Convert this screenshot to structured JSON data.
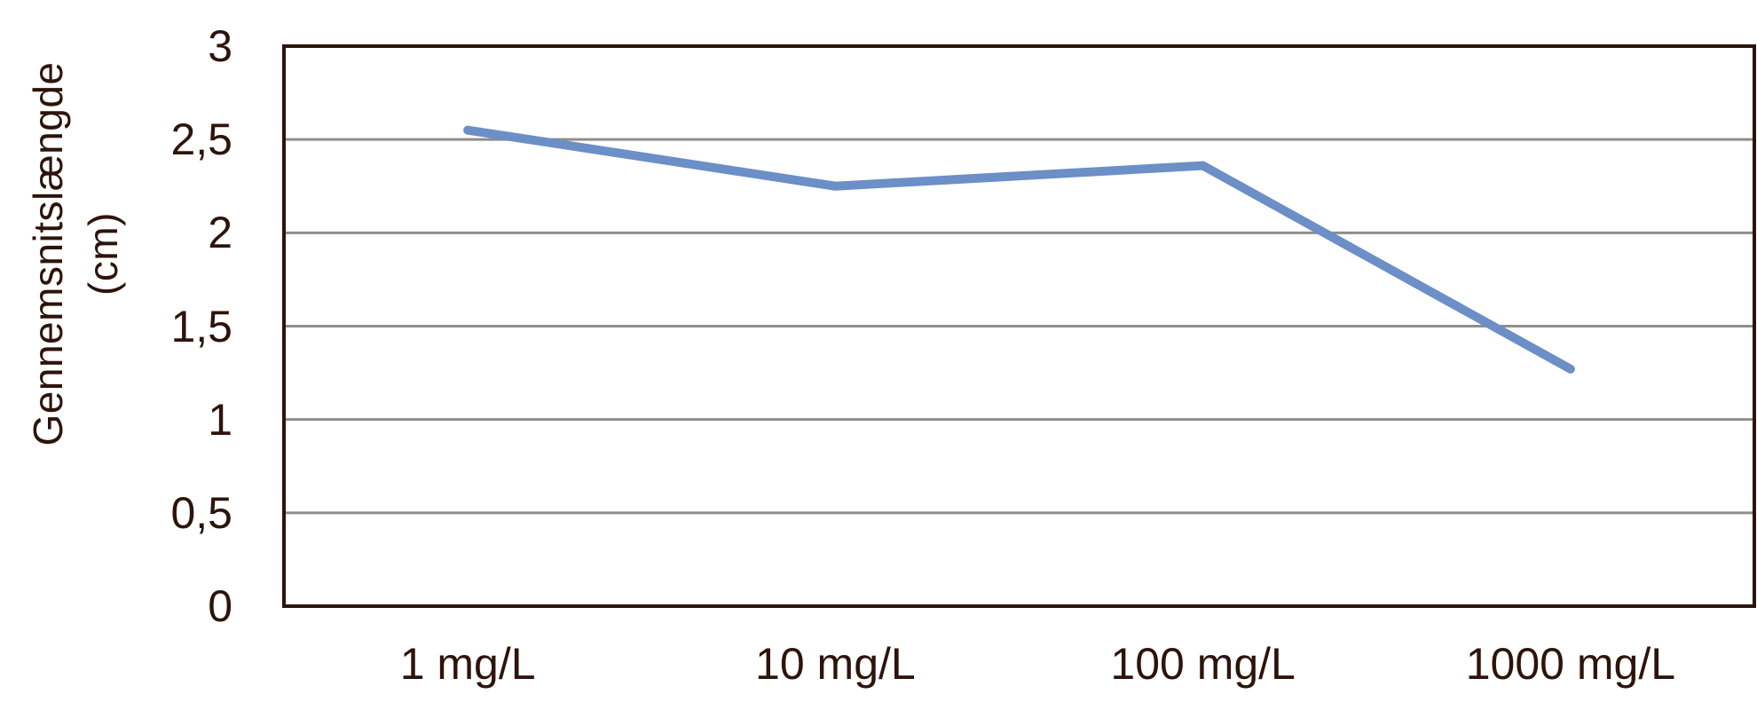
{
  "chart_data": {
    "type": "line",
    "title": "",
    "categories": [
      "1 mg/L",
      "10 mg/L",
      "100 mg/L",
      "1000 mg/L"
    ],
    "values": [
      2.55,
      2.25,
      2.36,
      1.27
    ],
    "xlabel": "",
    "ylabel": "Gennemsnitslængde (cm)",
    "ylabel_lines": [
      "Gennemsnitslængde",
      "(cm)"
    ],
    "ylim": [
      0,
      3
    ],
    "ytick_values": [
      0,
      0.5,
      1,
      1.5,
      2,
      2.5,
      3
    ],
    "ytick_labels": [
      "0",
      "0,5",
      "1",
      "1,5",
      "2",
      "2,5",
      "3"
    ],
    "grid": "horizontal",
    "legend": "none",
    "colors": {
      "line": "#6b8fc6",
      "axis_border": "#2d140b",
      "gridline": "#908d8a",
      "text": "#2d140b",
      "background": "#ffffff"
    }
  }
}
